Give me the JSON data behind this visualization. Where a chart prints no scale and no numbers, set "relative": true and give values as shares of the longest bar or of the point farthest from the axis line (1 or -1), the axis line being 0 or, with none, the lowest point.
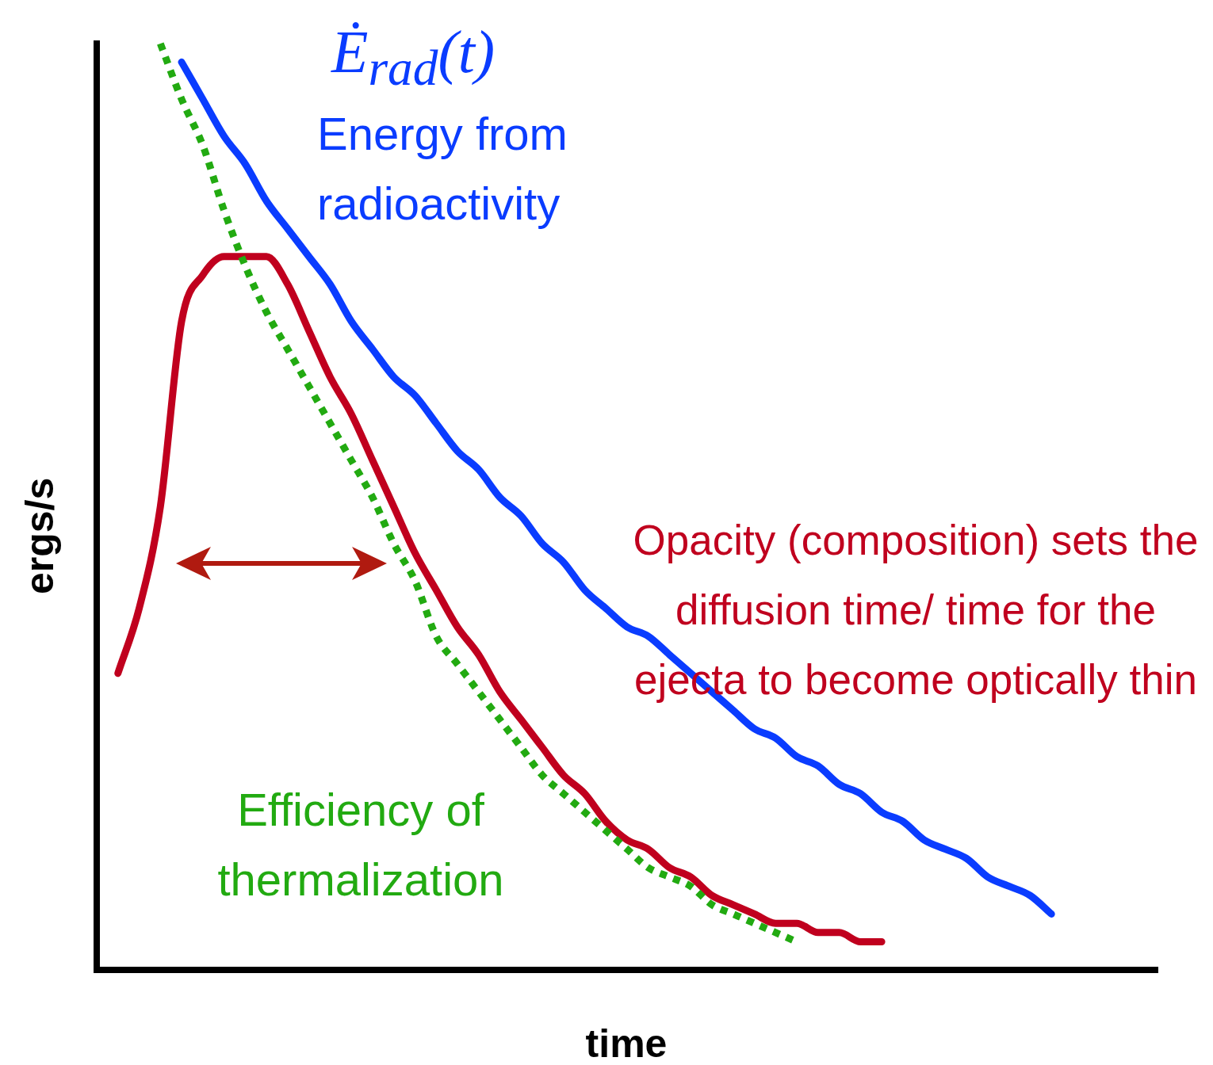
{
  "chart_data": {
    "type": "line",
    "xlabel": "time",
    "ylabel": "ergs/s",
    "relative": true,
    "legend": false,
    "marker": "none",
    "categories": [
      null,
      null,
      null,
      null,
      null,
      null,
      null,
      null,
      null,
      null,
      null,
      null,
      null,
      null,
      null,
      null,
      null,
      null,
      null,
      null,
      null,
      null,
      null,
      null,
      null,
      null,
      null,
      null,
      null,
      null,
      null,
      null,
      null,
      null,
      null,
      null,
      null,
      null,
      null,
      null,
      null,
      null,
      null,
      null,
      null,
      null,
      null,
      null,
      null,
      null,
      null
    ],
    "annotations": [
      "Ė$_{rad}$(t)"
    ],
    "series": [
      {
        "name": "Energy from radioactivity",
        "color": "#0a3cff",
        "line_style": "solid",
        "values": [
          null,
          null,
          null,
          null,
          0.98,
          0.94,
          0.9,
          0.87,
          0.83,
          0.8,
          0.77,
          0.74,
          0.7,
          0.67,
          0.64,
          0.62,
          0.59,
          0.56,
          0.54,
          0.51,
          0.49,
          0.46,
          0.44,
          0.41,
          0.39,
          0.37,
          0.36,
          0.34,
          0.32,
          0.3,
          0.28,
          0.26,
          0.25,
          0.23,
          0.22,
          0.2,
          0.19,
          0.17,
          0.16,
          0.14,
          0.13,
          0.12,
          0.1,
          0.09,
          0.08,
          0.06,
          null,
          null,
          null,
          null,
          null
        ]
      },
      {
        "name": "Efficiency of thermalization",
        "color": "#22aa11",
        "line_style": "dotted",
        "values": [
          null,
          null,
          null,
          1.0,
          0.94,
          0.89,
          0.82,
          0.76,
          0.71,
          0.67,
          0.63,
          0.59,
          0.55,
          0.51,
          0.46,
          0.42,
          0.36,
          0.33,
          0.3,
          0.27,
          0.24,
          0.21,
          0.19,
          0.17,
          0.15,
          0.13,
          0.11,
          0.1,
          0.09,
          0.07,
          0.06,
          0.05,
          0.04,
          0.03,
          null,
          null,
          null,
          null,
          null,
          null,
          null,
          null,
          null,
          null,
          null,
          null,
          null,
          null,
          null,
          null,
          null
        ]
      },
      {
        "name": "Opacity (composition) sets the diffusion time/ time for the ejecta to become optically thin",
        "color": "#c0001e",
        "line_style": "solid",
        "values": [
          null,
          0.32,
          0.39,
          0.5,
          0.7,
          0.75,
          0.77,
          0.77,
          0.77,
          0.74,
          0.69,
          0.64,
          0.6,
          0.55,
          0.5,
          0.45,
          0.41,
          0.37,
          0.34,
          0.3,
          0.27,
          0.24,
          0.21,
          0.19,
          0.16,
          0.14,
          0.13,
          0.11,
          0.1,
          0.08,
          0.07,
          0.06,
          0.05,
          0.05,
          0.04,
          0.04,
          0.03,
          0.03,
          null,
          null,
          null,
          null,
          null,
          null,
          null,
          null,
          null,
          null,
          null,
          null,
          null
        ]
      }
    ]
  }
}
